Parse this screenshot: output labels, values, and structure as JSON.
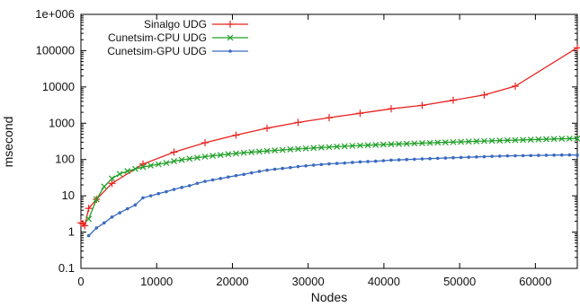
{
  "chart_data": {
    "type": "line",
    "title": "",
    "xlabel": "Nodes",
    "ylabel": "msecond",
    "xlim": [
      0,
      65536
    ],
    "ylim": [
      0.1,
      1000000
    ],
    "yscale": "log",
    "grid": false,
    "legend": "top-left",
    "x_ticks": [
      0,
      10000,
      20000,
      30000,
      40000,
      50000,
      60000
    ],
    "x_tick_labels": [
      "0",
      "10000",
      "20000",
      "30000",
      "40000",
      "50000",
      "60000"
    ],
    "y_ticks": [
      0.1,
      1,
      10,
      100,
      1000,
      10000,
      100000,
      1000000
    ],
    "y_tick_labels": [
      "0.1",
      "1",
      "10",
      "100",
      "1000",
      "10000",
      "100000",
      "1e+006"
    ],
    "series": [
      {
        "name": "Sinalgo UDG",
        "color": "#e8231f",
        "marker": "plus",
        "x": [
          0,
          256,
          512,
          1024,
          2048,
          4096,
          8192,
          12288,
          16384,
          20480,
          24576,
          28672,
          32768,
          36864,
          40960,
          45056,
          49152,
          53248,
          57344,
          65536
        ],
        "y": [
          1.8,
          1.7,
          1.5,
          4.5,
          8,
          22,
          75,
          160,
          290,
          470,
          730,
          1050,
          1420,
          1880,
          2500,
          3100,
          4300,
          6000,
          10500,
          120000
        ]
      },
      {
        "name": "Cunetsim-CPU UDG",
        "color": "#22a02a",
        "marker": "cross",
        "x": [
          1024,
          2048,
          3072,
          4096,
          5120,
          6144,
          7168,
          8192,
          9216,
          10240,
          11264,
          12288,
          13312,
          14336,
          15360,
          16384,
          17408,
          18432,
          19456,
          20480,
          21504,
          22528,
          23552,
          24576,
          25600,
          26624,
          27648,
          28672,
          29696,
          30720,
          31744,
          32768,
          33792,
          34816,
          35840,
          36864,
          37888,
          38912,
          39936,
          40960,
          41984,
          43008,
          44032,
          45056,
          46080,
          47104,
          48128,
          49152,
          50176,
          51200,
          52224,
          53248,
          54272,
          55296,
          56320,
          57344,
          58368,
          59392,
          60416,
          61440,
          62464,
          63488,
          64512,
          65536
        ],
        "y": [
          2.3,
          8,
          18,
          30,
          40,
          48,
          55,
          62,
          68,
          74,
          80,
          90,
          98,
          105,
          112,
          120,
          127,
          133,
          140,
          147,
          153,
          160,
          166,
          172,
          178,
          184,
          190,
          196,
          202,
          208,
          214,
          220,
          226,
          232,
          238,
          243,
          248,
          253,
          258,
          263,
          268,
          273,
          278,
          283,
          288,
          293,
          298,
          303,
          308,
          313,
          318,
          323,
          328,
          333,
          338,
          343,
          348,
          353,
          358,
          363,
          368,
          373,
          378,
          380
        ]
      },
      {
        "name": "Cunetsim-GPU UDG",
        "color": "#3a6ac0",
        "marker": "dot",
        "x": [
          1024,
          2048,
          3072,
          4096,
          5120,
          6144,
          7168,
          8192,
          9216,
          10240,
          11264,
          12288,
          13312,
          14336,
          15360,
          16384,
          17408,
          18432,
          19456,
          20480,
          21504,
          22528,
          23552,
          24576,
          25600,
          26624,
          27648,
          28672,
          29696,
          30720,
          31744,
          32768,
          33792,
          34816,
          35840,
          36864,
          37888,
          38912,
          39936,
          40960,
          41984,
          43008,
          44032,
          45056,
          46080,
          47104,
          48128,
          49152,
          50176,
          51200,
          52224,
          53248,
          54272,
          55296,
          56320,
          57344,
          58368,
          59392,
          60416,
          61440,
          62464,
          63488,
          64512,
          65536
        ],
        "y": [
          0.8,
          1.3,
          1.8,
          2.6,
          3.4,
          4.4,
          5.6,
          8.8,
          10,
          11.5,
          13,
          15,
          17,
          19,
          22,
          25,
          27.5,
          30,
          33,
          36,
          39,
          43,
          47,
          51,
          54,
          57,
          60,
          64,
          67,
          70,
          73,
          76,
          78,
          80,
          83,
          86,
          88,
          90,
          93,
          96,
          98,
          100,
          102,
          104,
          106,
          108,
          110,
          112,
          114,
          116,
          118,
          120,
          122,
          124,
          126,
          127,
          128,
          129,
          130,
          131,
          132,
          133,
          134,
          132
        ]
      }
    ]
  }
}
